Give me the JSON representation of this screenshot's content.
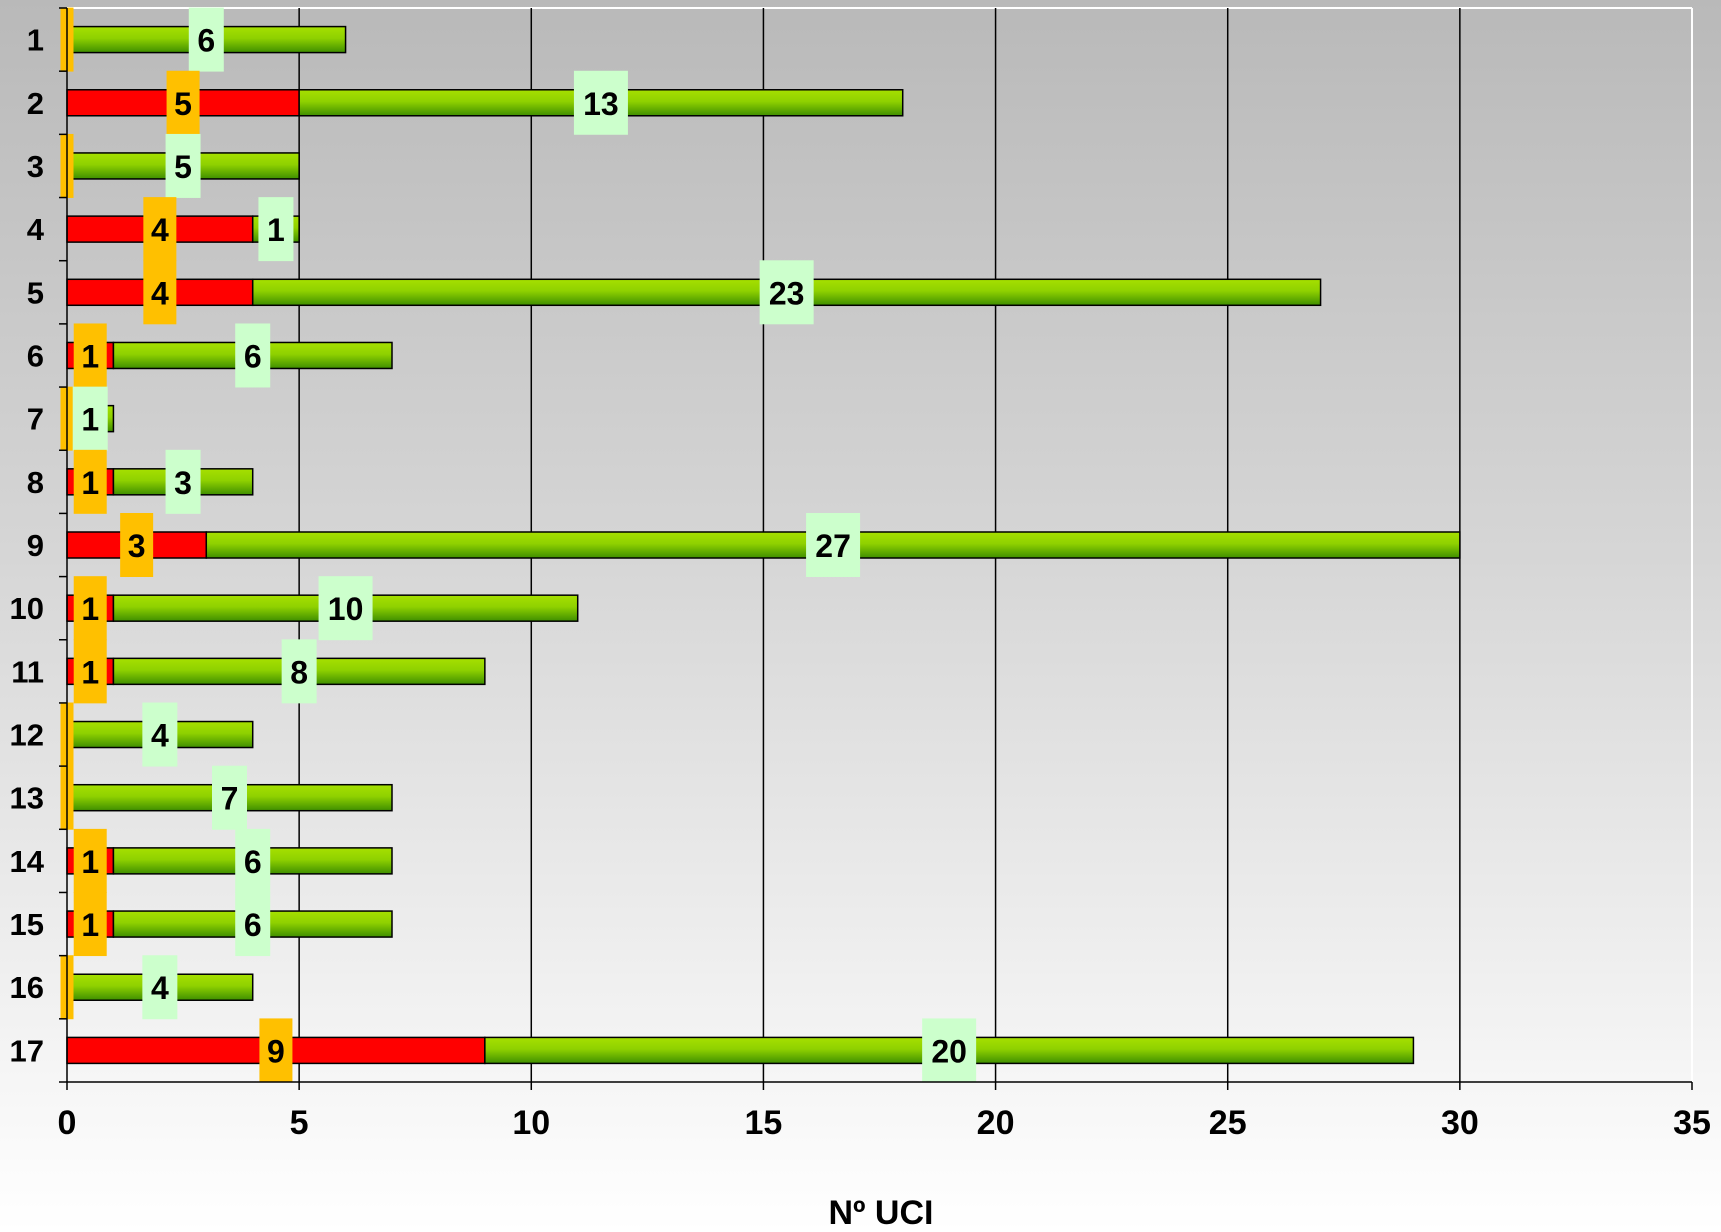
{
  "colors": {
    "bar_red": "#ff0000",
    "bar_green_light": "#a6e000",
    "bar_green_dark": "#3f8f00",
    "label_red_box": "#ffc000",
    "label_green_box": "#ccffcc",
    "gridline": "#000000",
    "plot_edge": "#ffffff"
  },
  "chart_data": {
    "type": "bar",
    "orientation": "horizontal",
    "stacked": true,
    "categories": [
      "1",
      "2",
      "3",
      "4",
      "5",
      "6",
      "7",
      "8",
      "9",
      "10",
      "11",
      "12",
      "13",
      "14",
      "15",
      "16",
      "17"
    ],
    "series": [
      {
        "values": [
          0,
          5,
          0,
          4,
          4,
          1,
          0,
          1,
          3,
          1,
          1,
          0,
          0,
          1,
          1,
          0,
          9
        ],
        "color": "#ff0000"
      },
      {
        "values": [
          6,
          13,
          5,
          1,
          23,
          6,
          1,
          3,
          27,
          10,
          8,
          4,
          7,
          6,
          6,
          4,
          20
        ],
        "color": "#7fc400"
      }
    ],
    "xlabel": "Nº UCI",
    "x_ticks": [
      "0",
      "5",
      "10",
      "15",
      "20",
      "25",
      "30",
      "35"
    ],
    "xlim": [
      0,
      35
    ],
    "grid": "vertical major gridlines",
    "data_labels": true,
    "legend": "none"
  }
}
